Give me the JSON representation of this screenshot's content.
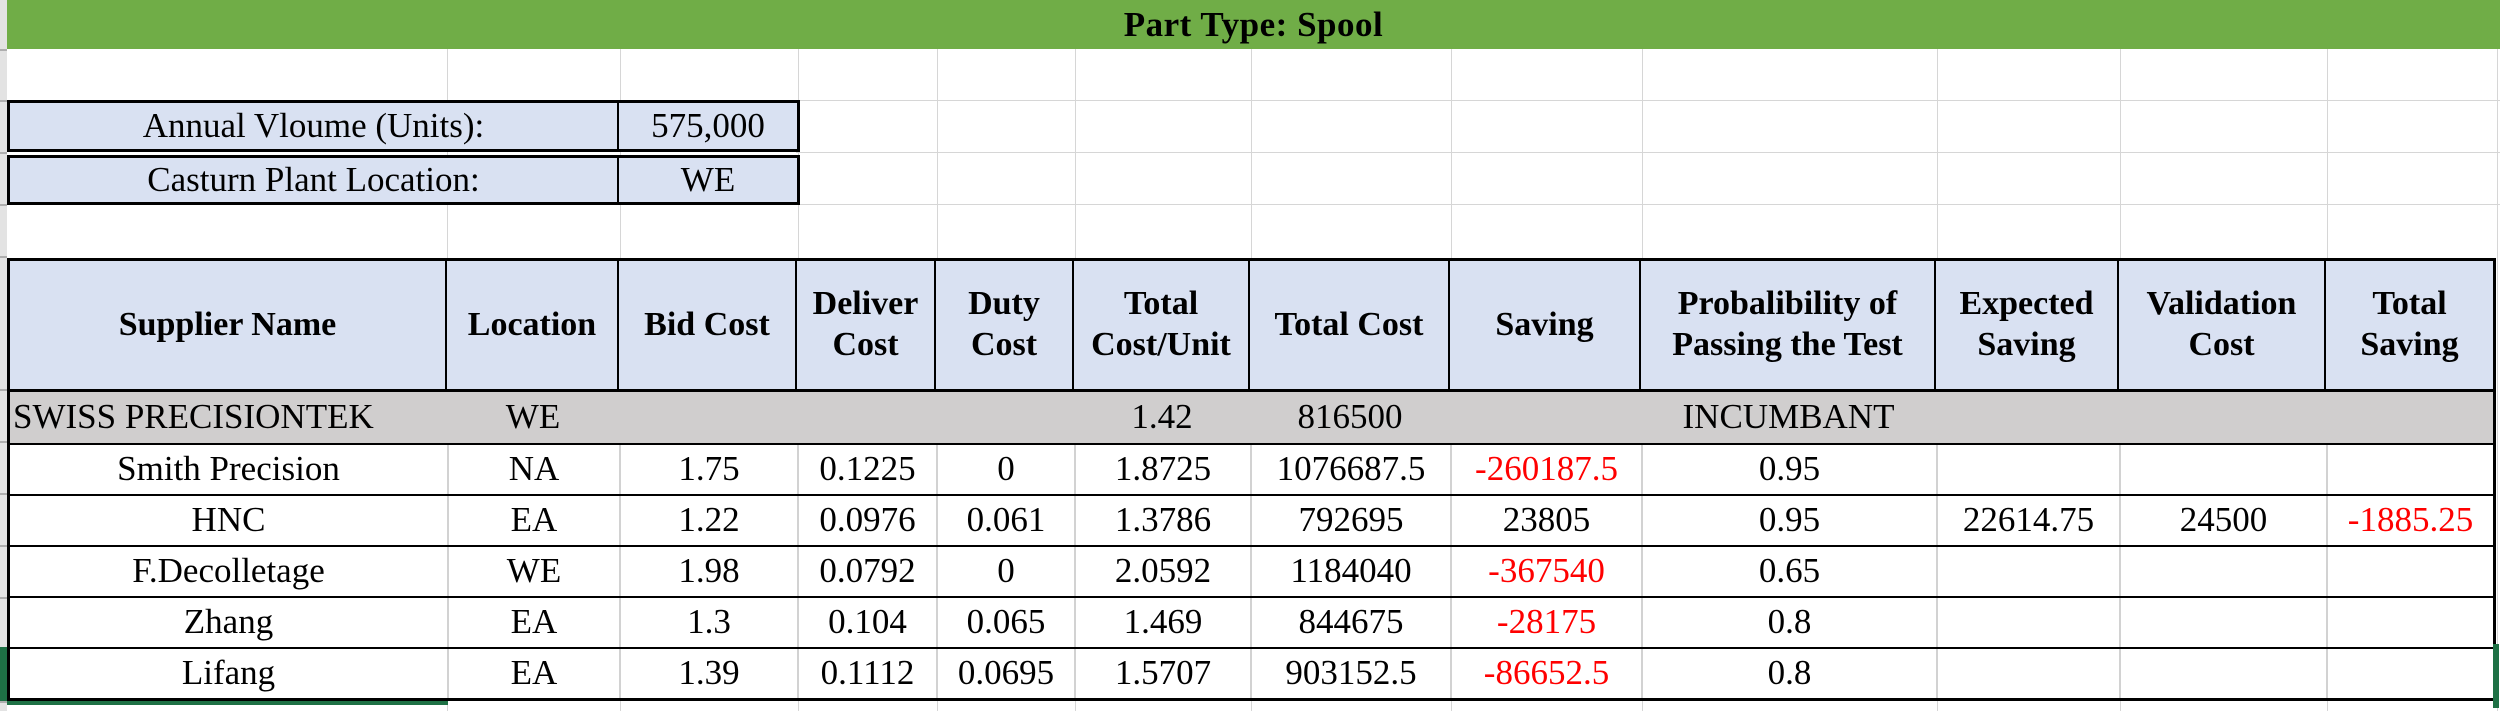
{
  "title_bar": {
    "text": "Part Type: Spool"
  },
  "info_panel": {
    "rows": [
      {
        "label": "Annual Vloume (Units):",
        "value": "575,000"
      },
      {
        "label": "Casturn Plant Location:",
        "value": "WE"
      }
    ]
  },
  "bid_table": {
    "headers": [
      "Supplier Name",
      "Location",
      "Bid Cost",
      "Deliver Cost",
      "Duty Cost",
      "Total Cost/Unit",
      "Total Cost",
      "Saving",
      "Probalibility of Passing the Test",
      "Expected Saving",
      "Validation Cost",
      "Total Saving"
    ],
    "rows": [
      {
        "kind": "incumbent",
        "cells": [
          "SWISS PRECISIONTEK",
          "WE",
          "",
          "",
          "",
          "1.42",
          "816500",
          "",
          "INCUMBANT",
          "",
          "",
          ""
        ],
        "red": []
      },
      {
        "kind": "data",
        "cells": [
          "Smith Precision",
          "NA",
          "1.75",
          "0.1225",
          "0",
          "1.8725",
          "1076687.5",
          "-260187.5",
          "0.95",
          "",
          "",
          ""
        ],
        "red": [
          7
        ]
      },
      {
        "kind": "data",
        "cells": [
          "HNC",
          "EA",
          "1.22",
          "0.0976",
          "0.061",
          "1.3786",
          "792695",
          "23805",
          "0.95",
          "22614.75",
          "24500",
          "-1885.25"
        ],
        "red": [
          11
        ]
      },
      {
        "kind": "data",
        "cells": [
          "F.Decolletage",
          "WE",
          "1.98",
          "0.0792",
          "0",
          "2.0592",
          "1184040",
          "-367540",
          "0.65",
          "",
          "",
          ""
        ],
        "red": [
          7
        ]
      },
      {
        "kind": "data",
        "cells": [
          "Zhang",
          "EA",
          "1.3",
          "0.104",
          "0.065",
          "1.469",
          "844675",
          "-28175",
          "0.8",
          "",
          "",
          ""
        ],
        "red": [
          7
        ]
      },
      {
        "kind": "data",
        "cells": [
          "Lifang",
          "EA",
          "1.39",
          "0.1112",
          "0.0695",
          "1.5707",
          "903152.5",
          "-86652.5",
          "0.8",
          "",
          "",
          ""
        ],
        "red": [
          7
        ],
        "selected": true
      }
    ]
  },
  "colors": {
    "accent_green": "#70AD47",
    "header_fill": "#D9E1F2",
    "incumbent_fill": "#D0CECE",
    "negative_red": "#FF0000",
    "selection_green": "#1E7145"
  }
}
